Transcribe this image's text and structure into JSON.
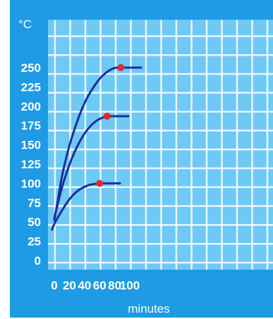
{
  "chart_data": {
    "type": "line",
    "title": "",
    "xlabel": "minutes",
    "ylabel": "°C",
    "xlim": [
      0,
      140
    ],
    "ylim": [
      0,
      275
    ],
    "x_ticks": [
      "0",
      "20",
      "40",
      "60",
      "80",
      "100"
    ],
    "y_ticks": [
      "0",
      "25",
      "50",
      "75",
      "100",
      "125",
      "150",
      "175",
      "200",
      "225",
      "250"
    ],
    "grid": true,
    "legend": "none",
    "colors": {
      "background": "#1e9be4",
      "plot": "#6ec9f5",
      "line": "#1b2f9a",
      "marker": "#e5282c",
      "grid": "#ffffff"
    },
    "series": [
      {
        "x": [
          0,
          5,
          10,
          20,
          30,
          40,
          50,
          60,
          70,
          80,
          88,
          100,
          115
        ],
        "y": [
          52,
          80,
          110,
          150,
          180,
          205,
          222,
          236,
          245,
          250,
          250,
          250,
          250
        ],
        "marker": [
          88,
          250
        ]
      },
      {
        "x": [
          0,
          5,
          10,
          20,
          30,
          40,
          50,
          60,
          70,
          80,
          98
        ],
        "y": [
          55,
          75,
          95,
          125,
          148,
          165,
          177,
          184,
          187,
          187,
          187
        ],
        "marker": [
          70,
          187
        ]
      },
      {
        "x": [
          -3,
          0,
          10,
          20,
          30,
          40,
          50,
          60,
          70,
          87
        ],
        "y": [
          40,
          48,
          65,
          80,
          90,
          96,
          99,
          100,
          100,
          100
        ],
        "marker": [
          60,
          100
        ]
      }
    ]
  }
}
